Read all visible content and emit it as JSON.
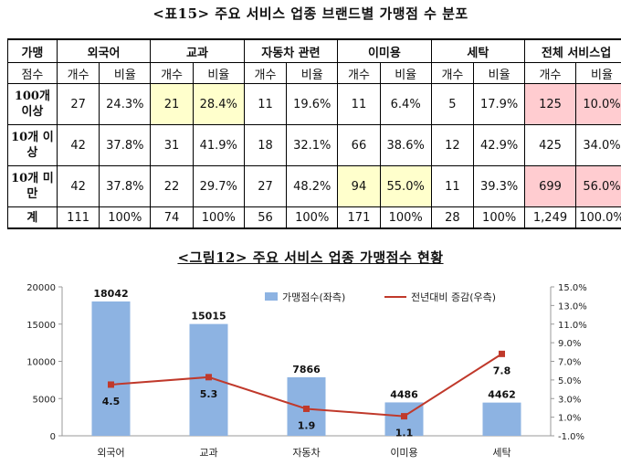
{
  "table_title": "<표15> 주요 서비스 업종 브랜드별 가맹점 수 분포",
  "table": {
    "corner_top": "가맹",
    "corner_bottom": "점수",
    "groups": [
      "외국어",
      "교과",
      "자동차 관련",
      "이미용",
      "세탁",
      "전체 서비스업"
    ],
    "sub_headers": [
      "개수",
      "비율"
    ],
    "rows": [
      {
        "label": "100개 이상",
        "cells": [
          "27",
          "24.3%",
          "21",
          "28.4%",
          "11",
          "19.6%",
          "11",
          "6.4%",
          "5",
          "17.9%",
          "125",
          "10.0%"
        ]
      },
      {
        "label": "10개 이상",
        "cells": [
          "42",
          "37.8%",
          "31",
          "41.9%",
          "18",
          "32.1%",
          "66",
          "38.6%",
          "12",
          "42.9%",
          "425",
          "34.0%"
        ]
      },
      {
        "label": "10개 미만",
        "cells": [
          "42",
          "37.8%",
          "22",
          "29.7%",
          "27",
          "48.2%",
          "94",
          "55.0%",
          "11",
          "39.3%",
          "699",
          "56.0%"
        ]
      },
      {
        "label": "계",
        "cells": [
          "111",
          "100%",
          "74",
          "100%",
          "56",
          "100%",
          "171",
          "100%",
          "28",
          "100%",
          "1,249",
          "100.0%"
        ]
      }
    ],
    "highlight_yellow": "#ffffcc",
    "highlight_pink": "#ffccd0"
  },
  "chart_title": "<그림12> 주요 서비스 업종 가맹점수 현황",
  "chart_data": {
    "type": "bar",
    "categories": [
      "외국어",
      "교과",
      "자동차",
      "이미용",
      "세탁"
    ],
    "series": [
      {
        "name": "가맹점수(좌측)",
        "type": "bar",
        "axis": "left",
        "values": [
          18042,
          15015,
          7866,
          4486,
          4462
        ],
        "color": "#8db3e2"
      },
      {
        "name": "전년대비 증감(우측)",
        "type": "line",
        "axis": "right",
        "values": [
          4.5,
          5.3,
          1.9,
          1.1,
          7.8
        ],
        "color": "#c0392b"
      }
    ],
    "left_axis": {
      "min": 0,
      "max": 20000,
      "ticks": [
        "0",
        "5000",
        "10000",
        "15000",
        "20000"
      ]
    },
    "right_axis": {
      "min": -1.0,
      "max": 15.0,
      "ticks": [
        "-1.0%",
        "1.0%",
        "3.0%",
        "5.0%",
        "7.0%",
        "9.0%",
        "11.0%",
        "13.0%",
        "15.0%"
      ]
    },
    "bar_labels": [
      "18042",
      "15015",
      "7866",
      "4486",
      "4462"
    ],
    "line_labels": [
      "4.5",
      "5.3",
      "1.9",
      "1.1",
      "7.8"
    ],
    "legend_position": "top-right",
    "grid": false
  }
}
